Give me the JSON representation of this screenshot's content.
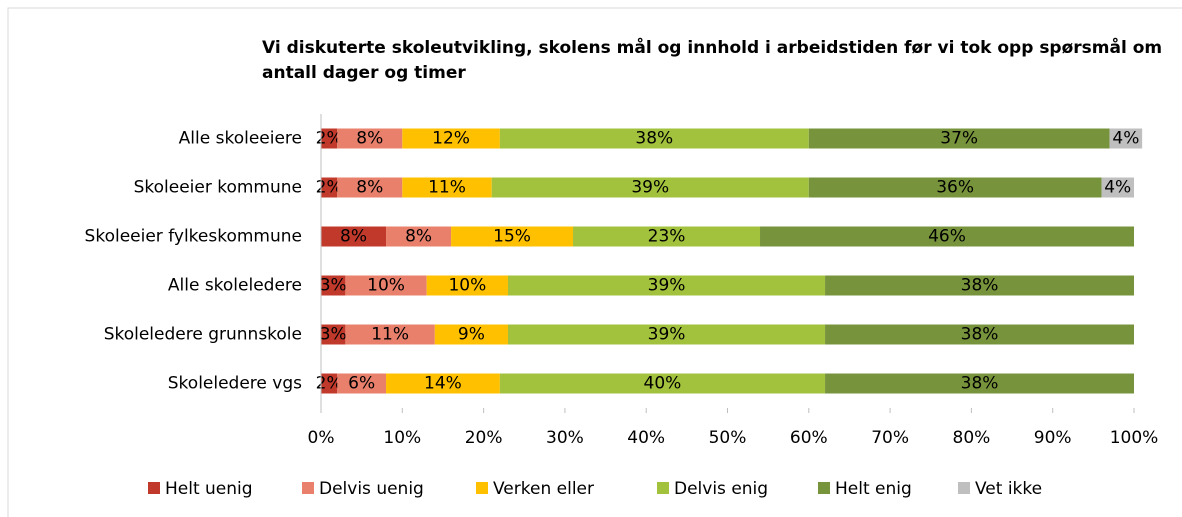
{
  "chart_data": {
    "type": "stacked_bar_horizontal",
    "title": "Vi diskuterte skoleutvikling, skolens mål og innhold i arbeidstiden før vi tok opp spørsmål om antall dager og timer",
    "categories": [
      "Alle skoleeiere",
      "Skoleeier kommune",
      "Skoleeier fylkeskommune",
      "Alle skoleledere",
      "Skoleledere grunnskole",
      "Skoleledere vgs"
    ],
    "series": [
      {
        "name": "Helt uenig",
        "color": "#c0392b",
        "values": [
          2,
          2,
          8,
          3,
          3,
          2
        ],
        "value_labels": [
          "2%",
          "2%",
          "8%",
          "3%",
          "3%",
          "2%"
        ]
      },
      {
        "name": "Delvis uenig",
        "color": "#e8806c",
        "values": [
          8,
          8,
          8,
          10,
          11,
          6
        ],
        "value_labels": [
          "8%",
          "8%",
          "8%",
          "10%",
          "11%",
          "6%"
        ]
      },
      {
        "name": "Verken eller",
        "color": "#ffc000",
        "values": [
          12,
          11,
          15,
          10,
          9,
          14
        ],
        "value_labels": [
          "12%",
          "11%",
          "15%",
          "10%",
          "9%",
          "14%"
        ]
      },
      {
        "name": "Delvis enig",
        "color": "#a2c13c",
        "values": [
          38,
          39,
          23,
          39,
          39,
          40
        ],
        "value_labels": [
          "38%",
          "39%",
          "23%",
          "39%",
          "39%",
          "40%"
        ]
      },
      {
        "name": "Helt enig",
        "color": "#77933c",
        "values": [
          37,
          36,
          46,
          38,
          38,
          38
        ],
        "value_labels": [
          "37%",
          "36%",
          "46%",
          "38%",
          "38%",
          "38%"
        ]
      },
      {
        "name": "Vet ikke",
        "color": "#bfbfbf",
        "values": [
          4,
          4,
          null,
          null,
          null,
          null
        ],
        "value_labels": [
          "4%",
          "4%",
          null,
          null,
          null,
          null
        ]
      }
    ],
    "xlim": [
      0,
      100
    ],
    "xticks": [
      {
        "value": 0,
        "label": "0%"
      },
      {
        "value": 10,
        "label": "10%"
      },
      {
        "value": 20,
        "label": "20%"
      },
      {
        "value": 30,
        "label": "30%"
      },
      {
        "value": 40,
        "label": "40%"
      },
      {
        "value": 50,
        "label": "50%"
      },
      {
        "value": 60,
        "label": "60%"
      },
      {
        "value": 70,
        "label": "70%"
      },
      {
        "value": 80,
        "label": "80%"
      },
      {
        "value": 90,
        "label": "90%"
      },
      {
        "value": 100,
        "label": "100%"
      }
    ],
    "legend": "bottom"
  }
}
